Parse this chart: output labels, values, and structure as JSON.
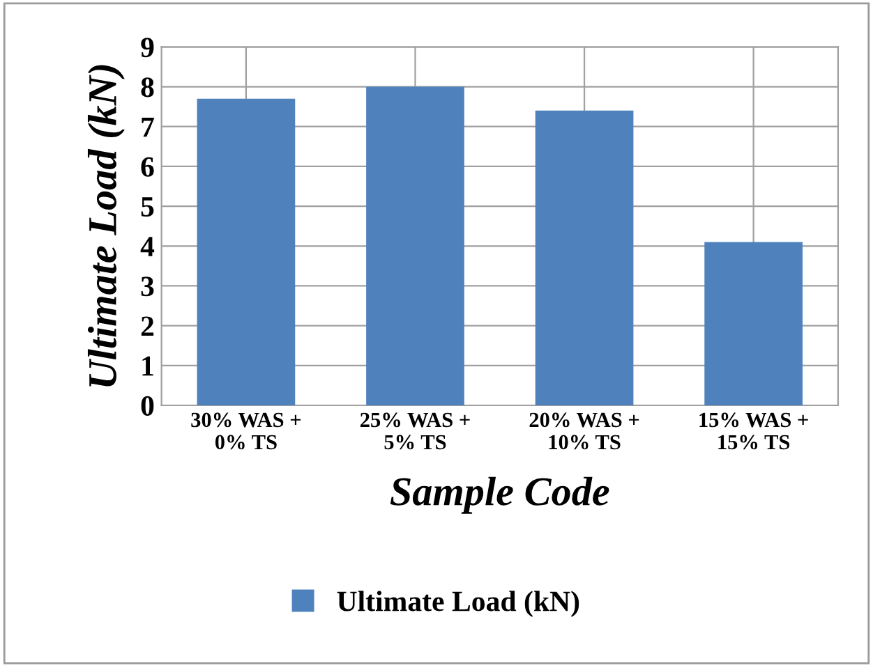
{
  "chart_data": {
    "type": "bar",
    "xlabel": "Sample Code",
    "ylabel": "Ultimate Load (kN)",
    "categories": [
      "30% WAS +\n0% TS",
      "25% WAS +\n5% TS",
      "20% WAS +\n10% TS",
      "15% WAS +\n15% TS"
    ],
    "series": [
      {
        "name": "Ultimate Load (kN)",
        "color": "#4f81bd",
        "values": [
          7.7,
          8.0,
          7.4,
          4.1
        ]
      }
    ],
    "ylim": [
      0,
      9
    ],
    "yticks": [
      0,
      1,
      2,
      3,
      4,
      5,
      6,
      7,
      8,
      9
    ],
    "grid": true,
    "legend": "bottom"
  }
}
